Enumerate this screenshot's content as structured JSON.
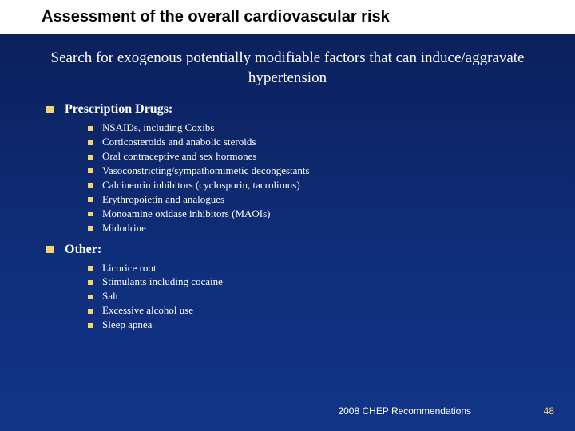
{
  "colors": {
    "background_top": "#0a1f5a",
    "background_bottom": "#123588",
    "title_bg": "#ffffff",
    "title_text": "#000000",
    "body_text": "#ffffff",
    "bullet": "#f5d56b",
    "page_num": "#f5d56b"
  },
  "title": "Assessment of the overall cardiovascular risk",
  "subtitle": "Search for exogenous potentially modifiable factors that can induce/aggravate hypertension",
  "sections": [
    {
      "label": "Prescription Drugs:",
      "items": [
        "NSAIDs, including Coxibs",
        "Corticosteroids and anabolic steroids",
        "Oral contraceptive and sex hormones",
        "Vasoconstricting/sympathomimetic decongestants",
        "Calcineurin inhibitors (cyclosporin, tacrolimus)",
        "Erythropoietin and analogues",
        "Monoamine oxidase inhibitors (MAOIs)",
        "Midodrine"
      ]
    },
    {
      "label": "Other:",
      "items": [
        "Licorice root",
        "Stimulants including cocaine",
        "Salt",
        "Excessive alcohol use",
        "Sleep apnea"
      ]
    }
  ],
  "footer": "2008 CHEP Recommendations",
  "page": "48"
}
